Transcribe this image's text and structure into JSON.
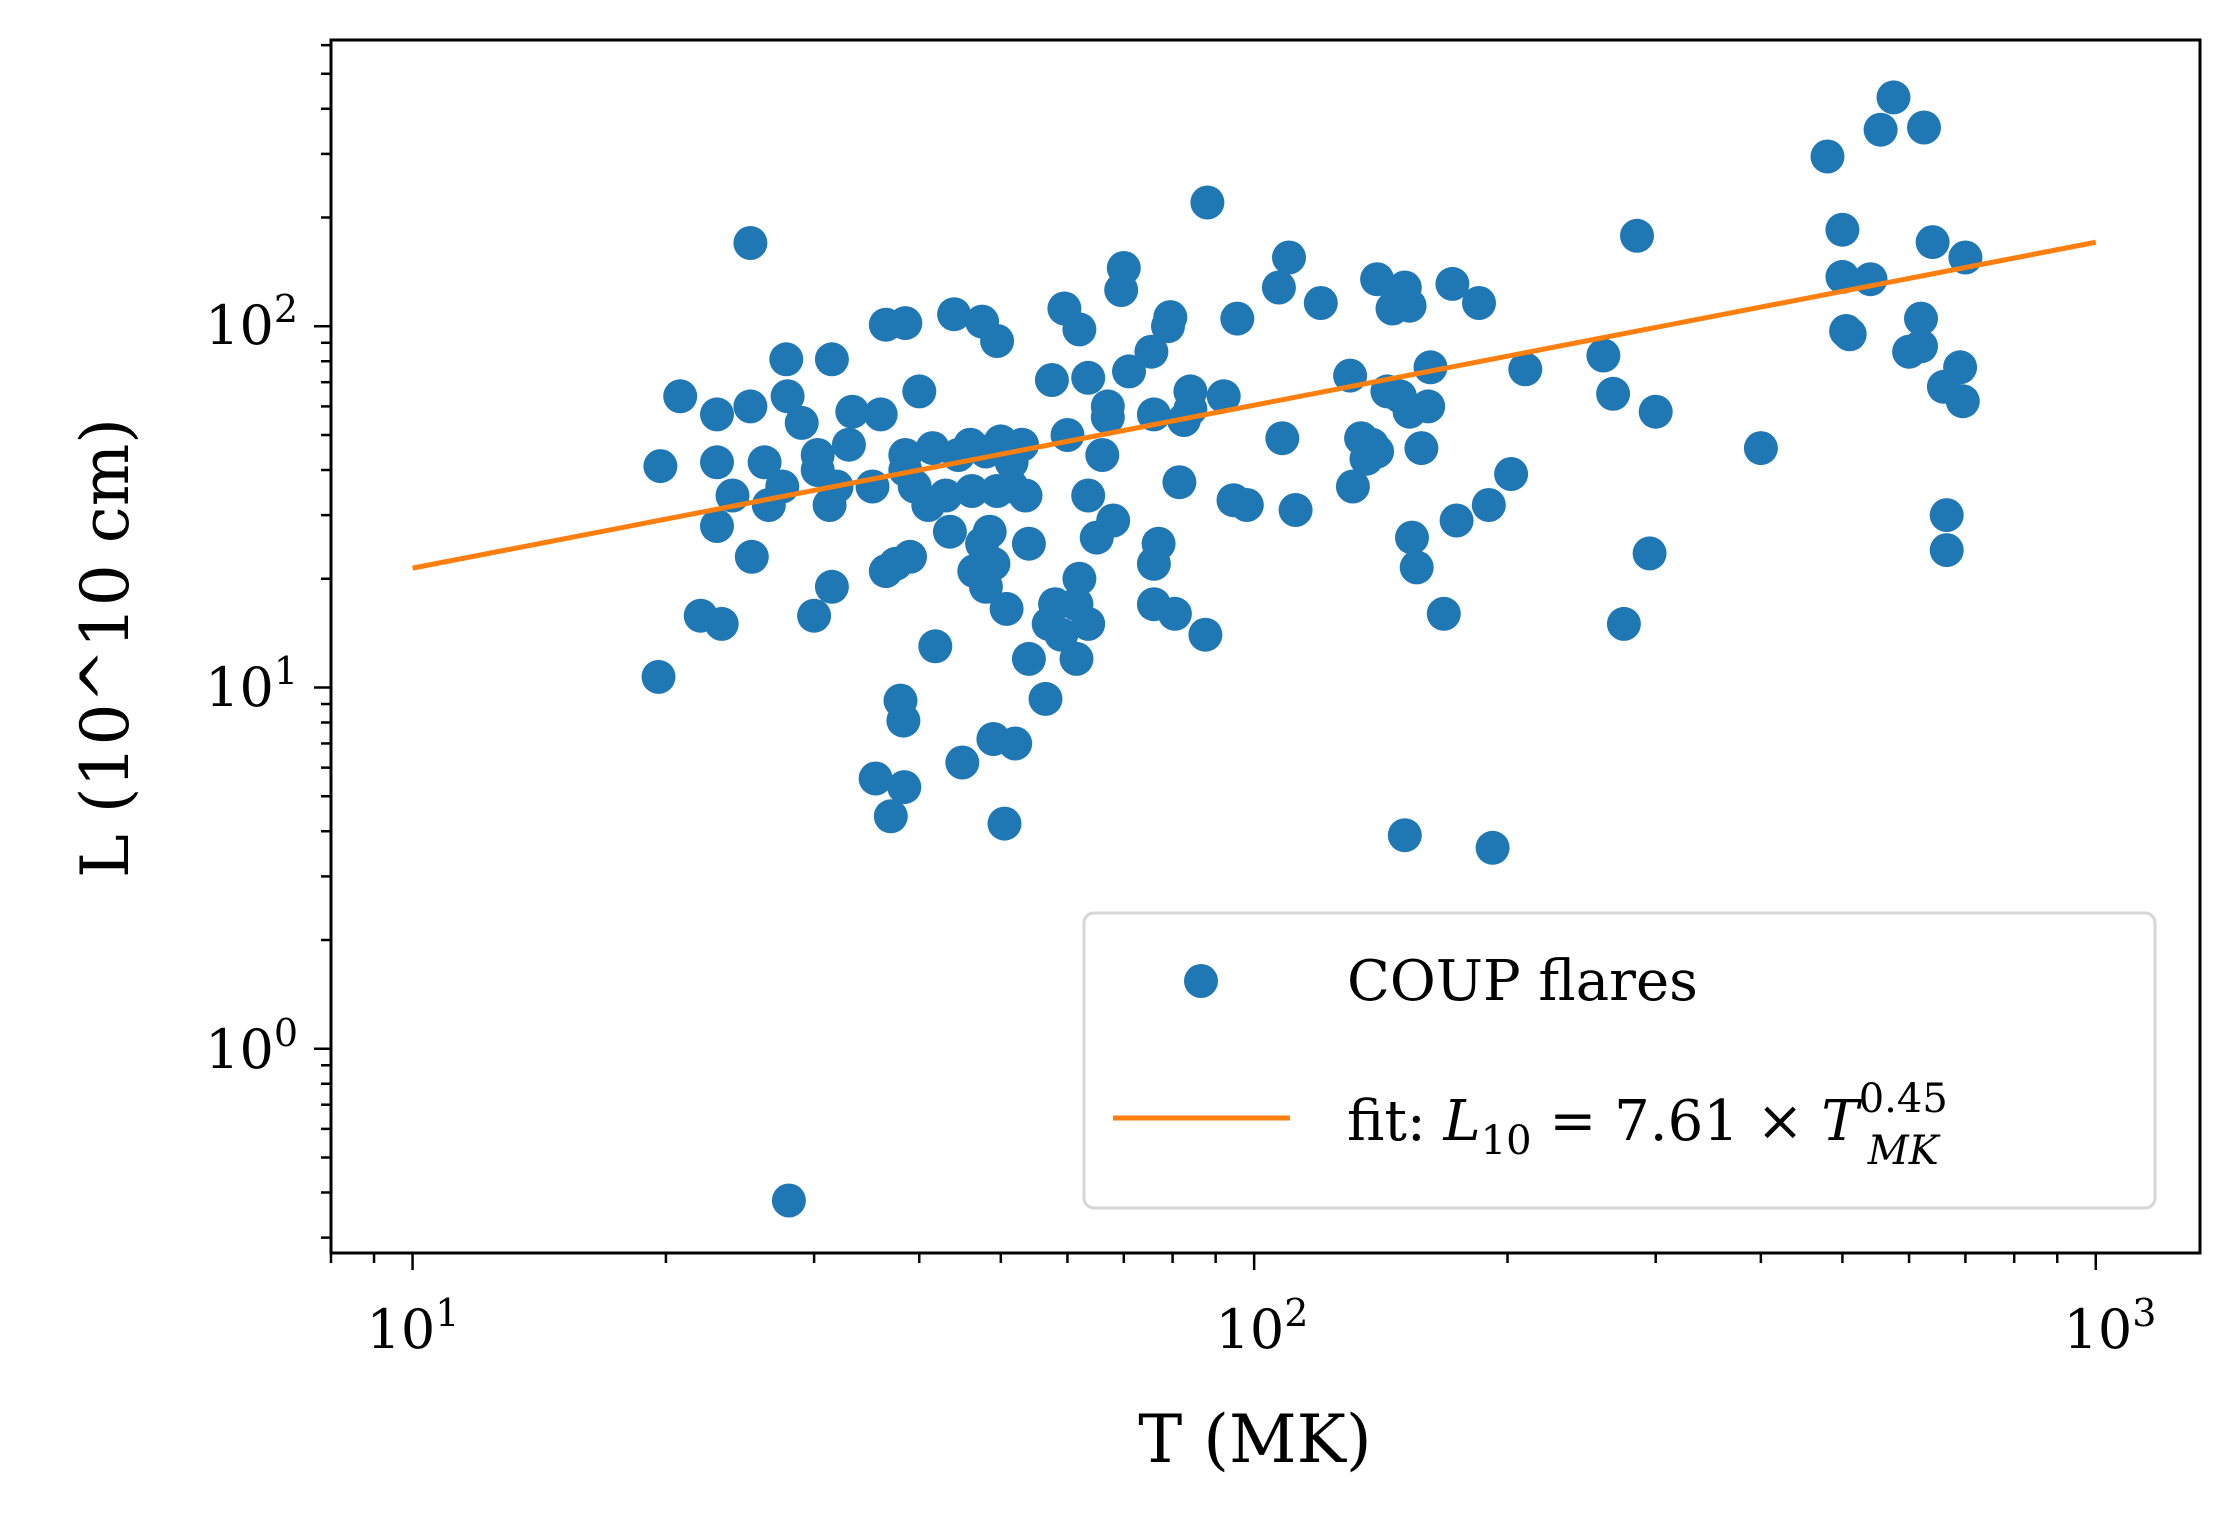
{
  "chart_data": {
    "type": "scatter",
    "xscale": "log",
    "yscale": "log",
    "xlim": [
      8.0,
      1330.0
    ],
    "ylim": [
      0.272,
      620.0
    ],
    "xlabel": "T (MK)",
    "ylabel": "L (10^10 cm)",
    "legend_location": "lower-right",
    "x_ticks": [
      {
        "value": 10,
        "base": "10",
        "exp": "1"
      },
      {
        "value": 100,
        "base": "10",
        "exp": "2"
      },
      {
        "value": 1000,
        "base": "10",
        "exp": "3"
      }
    ],
    "y_ticks": [
      {
        "value": 1,
        "base": "10",
        "exp": "0"
      },
      {
        "value": 10,
        "base": "10",
        "exp": "1"
      },
      {
        "value": 100,
        "base": "10",
        "exp": "2"
      }
    ],
    "series": [
      {
        "name": "COUP flares",
        "color": "#1f77b4",
        "marker": "circle",
        "points": [
          [
            19.6,
            10.7
          ],
          [
            19.7,
            41
          ],
          [
            20.8,
            64
          ],
          [
            22.0,
            15.8
          ],
          [
            23.0,
            57
          ],
          [
            23.0,
            42
          ],
          [
            23.0,
            28
          ],
          [
            23.3,
            15
          ],
          [
            24.0,
            34
          ],
          [
            25.2,
            170
          ],
          [
            25.2,
            60
          ],
          [
            25.3,
            23
          ],
          [
            26.2,
            42
          ],
          [
            26.5,
            32
          ],
          [
            27.5,
            36
          ],
          [
            27.8,
            81
          ],
          [
            27.9,
            64
          ],
          [
            28.0,
            0.38
          ],
          [
            29.0,
            54
          ],
          [
            30.0,
            15.8
          ],
          [
            30.3,
            44
          ],
          [
            30.3,
            40
          ],
          [
            31.3,
            32
          ],
          [
            31.5,
            19
          ],
          [
            31.5,
            81
          ],
          [
            31.9,
            36
          ],
          [
            33.0,
            47
          ],
          [
            33.3,
            58
          ],
          [
            35.2,
            36
          ],
          [
            35.5,
            5.6
          ],
          [
            36.0,
            57
          ],
          [
            36.5,
            101
          ],
          [
            36.5,
            21
          ],
          [
            37.0,
            4.4
          ],
          [
            37.5,
            22
          ],
          [
            38.0,
            9.2
          ],
          [
            38.3,
            8.1
          ],
          [
            38.4,
            5.3
          ],
          [
            38.5,
            102
          ],
          [
            38.5,
            40
          ],
          [
            38.5,
            44
          ],
          [
            39.0,
            23
          ],
          [
            39.5,
            36
          ],
          [
            40.0,
            66
          ],
          [
            41.0,
            32
          ],
          [
            41.5,
            46
          ],
          [
            41.8,
            13
          ],
          [
            43.0,
            34
          ],
          [
            43.5,
            27
          ],
          [
            44.0,
            108
          ],
          [
            44.5,
            44
          ],
          [
            45.0,
            6.2
          ],
          [
            46.0,
            47
          ],
          [
            46.2,
            35
          ],
          [
            46.5,
            21
          ],
          [
            47.5,
            103
          ],
          [
            47.5,
            25
          ],
          [
            48.0,
            19
          ],
          [
            48.0,
            45
          ],
          [
            48.5,
            27
          ],
          [
            49.0,
            7.2
          ],
          [
            49.0,
            22
          ],
          [
            49.5,
            91
          ],
          [
            49.5,
            35
          ],
          [
            50.0,
            48
          ],
          [
            50.5,
            4.2
          ],
          [
            50.8,
            16.5
          ],
          [
            51.5,
            42
          ],
          [
            51.5,
            36
          ],
          [
            52.0,
            7.0
          ],
          [
            53.0,
            47
          ],
          [
            53.5,
            34
          ],
          [
            54.0,
            25
          ],
          [
            54.0,
            12
          ],
          [
            56.5,
            9.3
          ],
          [
            57.0,
            15
          ],
          [
            57.5,
            71
          ],
          [
            58.0,
            17
          ],
          [
            59.0,
            14
          ],
          [
            59.5,
            112
          ],
          [
            60.0,
            50
          ],
          [
            61.5,
            12
          ],
          [
            61.5,
            17
          ],
          [
            62.0,
            20
          ],
          [
            62.0,
            98
          ],
          [
            63.5,
            15
          ],
          [
            63.5,
            72
          ],
          [
            63.5,
            34
          ],
          [
            65.0,
            26
          ],
          [
            66.0,
            44
          ],
          [
            67.0,
            60
          ],
          [
            67.0,
            56
          ],
          [
            68.0,
            29
          ],
          [
            69.5,
            126
          ],
          [
            70.0,
            145
          ],
          [
            71.0,
            75
          ],
          [
            75.5,
            85
          ],
          [
            76.0,
            57
          ],
          [
            76.0,
            17
          ],
          [
            76.0,
            22
          ],
          [
            77.0,
            25
          ],
          [
            79.0,
            100
          ],
          [
            79.5,
            106
          ],
          [
            80.5,
            16
          ],
          [
            81.5,
            37
          ],
          [
            82.5,
            55
          ],
          [
            84.0,
            66
          ],
          [
            84.0,
            59
          ],
          [
            87.5,
            14
          ],
          [
            88.0,
            220
          ],
          [
            92.0,
            64
          ],
          [
            94.5,
            33
          ],
          [
            95.5,
            105
          ],
          [
            98.0,
            32
          ],
          [
            107,
            128
          ],
          [
            108,
            49
          ],
          [
            110,
            155
          ],
          [
            112,
            31
          ],
          [
            120,
            116
          ],
          [
            130,
            73
          ],
          [
            131,
            36
          ],
          [
            134,
            49
          ],
          [
            136,
            43
          ],
          [
            138,
            47
          ],
          [
            140,
            135
          ],
          [
            140,
            45
          ],
          [
            144,
            66
          ],
          [
            146,
            112
          ],
          [
            149,
            64
          ],
          [
            151,
            3.9
          ],
          [
            151,
            128
          ],
          [
            153,
            114
          ],
          [
            153,
            58
          ],
          [
            154,
            26
          ],
          [
            156,
            21.5
          ],
          [
            158,
            46
          ],
          [
            161,
            60
          ],
          [
            162,
            77
          ],
          [
            168,
            16
          ],
          [
            172,
            131
          ],
          [
            174,
            29
          ],
          [
            185,
            116
          ],
          [
            190,
            32
          ],
          [
            192,
            3.6
          ],
          [
            202,
            39
          ],
          [
            210,
            76
          ],
          [
            260,
            83
          ],
          [
            267,
            65
          ],
          [
            275,
            15
          ],
          [
            285,
            178
          ],
          [
            295,
            23.5
          ],
          [
            300,
            58
          ],
          [
            400,
            46
          ],
          [
            480,
            295
          ],
          [
            500,
            185
          ],
          [
            500,
            137
          ],
          [
            505,
            97
          ],
          [
            510,
            95
          ],
          [
            540,
            135
          ],
          [
            555,
            350
          ],
          [
            575,
            430
          ],
          [
            600,
            85
          ],
          [
            620,
            88
          ],
          [
            620,
            105
          ],
          [
            625,
            355
          ],
          [
            640,
            171
          ],
          [
            660,
            68
          ],
          [
            665,
            30
          ],
          [
            665,
            24
          ],
          [
            690,
            77
          ],
          [
            695,
            62
          ],
          [
            700,
            155
          ]
        ]
      },
      {
        "name": "fit",
        "color": "#ff7f0e",
        "line_x": [
          10,
          1000
        ],
        "line_y": [
          21.4,
          170.8
        ]
      }
    ],
    "legend": [
      {
        "label": "COUP flares",
        "type": "marker"
      },
      {
        "label_prefix": "fit: ",
        "label_var": "L",
        "label_var_sub": "10",
        "label_rest": " = 7.61 × ",
        "label_T": "T",
        "label_T_sup": "0.45",
        "label_T_sub": "MK",
        "type": "line"
      }
    ]
  }
}
